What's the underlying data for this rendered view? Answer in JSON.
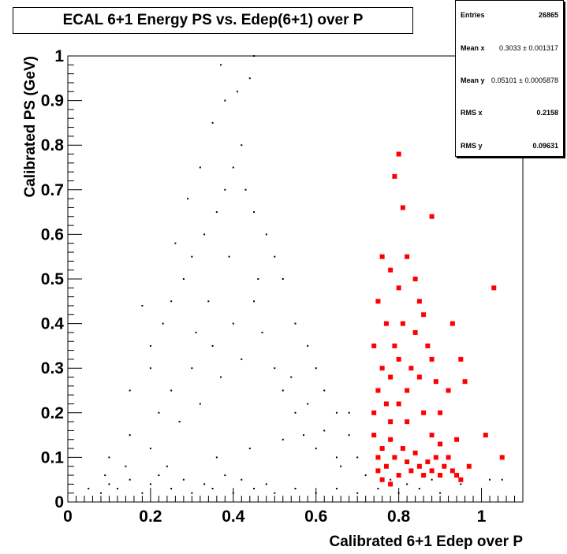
{
  "title": "ECAL 6+1 Energy PS vs. Edep(6+1) over P",
  "stats": [
    {
      "name": "Entries",
      "value": "26865"
    },
    {
      "name": "Mean x",
      "value": "0.3033 ± 0.001317"
    },
    {
      "name": "Mean y",
      "value": "0.05101 ± 0.0005878"
    },
    {
      "name": "RMS x",
      "value": "0.2158"
    },
    {
      "name": "RMS y",
      "value": "0.09631"
    }
  ],
  "chart_data": {
    "type": "scatter",
    "title": "ECAL 6+1 Energy PS vs. Edep(6+1) over P",
    "xlabel": "Calibrated 6+1 Edep over P",
    "ylabel": "Calibrated PS (GeV)",
    "xlim": [
      0,
      1.1
    ],
    "ylim": [
      0,
      1.0
    ],
    "x_ticks": [
      "0",
      "0.2",
      "0.4",
      "0.6",
      "0.8",
      "1"
    ],
    "y_ticks": [
      "0",
      "0.1",
      "0.2",
      "0.3",
      "0.4",
      "0.5",
      "0.6",
      "0.7",
      "0.8",
      "0.9",
      "1"
    ],
    "grid": false,
    "colors": {
      "all": "#000000",
      "selected": "#ff0000"
    },
    "series": [
      {
        "style": "small black dots",
        "points": [
          [
            0.05,
            0.03
          ],
          [
            0.08,
            0.02
          ],
          [
            0.1,
            0.04
          ],
          [
            0.12,
            0.03
          ],
          [
            0.15,
            0.05
          ],
          [
            0.18,
            0.02
          ],
          [
            0.2,
            0.04
          ],
          [
            0.22,
            0.06
          ],
          [
            0.25,
            0.03
          ],
          [
            0.28,
            0.05
          ],
          [
            0.3,
            0.02
          ],
          [
            0.33,
            0.04
          ],
          [
            0.35,
            0.03
          ],
          [
            0.38,
            0.06
          ],
          [
            0.4,
            0.02
          ],
          [
            0.42,
            0.05
          ],
          [
            0.45,
            0.03
          ],
          [
            0.48,
            0.04
          ],
          [
            0.5,
            0.02
          ],
          [
            0.55,
            0.03
          ],
          [
            0.6,
            0.02
          ],
          [
            0.65,
            0.03
          ],
          [
            0.7,
            0.02
          ],
          [
            0.75,
            0.03
          ],
          [
            0.8,
            0.02
          ],
          [
            0.85,
            0.03
          ],
          [
            0.9,
            0.02
          ],
          [
            0.1,
            0.1
          ],
          [
            0.15,
            0.15
          ],
          [
            0.2,
            0.12
          ],
          [
            0.22,
            0.2
          ],
          [
            0.25,
            0.25
          ],
          [
            0.27,
            0.18
          ],
          [
            0.3,
            0.3
          ],
          [
            0.32,
            0.22
          ],
          [
            0.35,
            0.35
          ],
          [
            0.37,
            0.28
          ],
          [
            0.4,
            0.4
          ],
          [
            0.42,
            0.32
          ],
          [
            0.45,
            0.45
          ],
          [
            0.47,
            0.38
          ],
          [
            0.5,
            0.3
          ],
          [
            0.52,
            0.25
          ],
          [
            0.55,
            0.2
          ],
          [
            0.57,
            0.15
          ],
          [
            0.6,
            0.12
          ],
          [
            0.65,
            0.1
          ],
          [
            0.28,
            0.5
          ],
          [
            0.3,
            0.55
          ],
          [
            0.33,
            0.6
          ],
          [
            0.36,
            0.65
          ],
          [
            0.38,
            0.7
          ],
          [
            0.4,
            0.75
          ],
          [
            0.42,
            0.8
          ],
          [
            0.35,
            0.85
          ],
          [
            0.38,
            0.9
          ],
          [
            0.41,
            0.92
          ],
          [
            0.44,
            0.95
          ],
          [
            0.37,
            0.98
          ],
          [
            0.45,
            1.0
          ],
          [
            0.25,
            0.45
          ],
          [
            0.2,
            0.35
          ],
          [
            0.18,
            0.44
          ],
          [
            0.15,
            0.25
          ],
          [
            0.5,
            0.55
          ],
          [
            0.48,
            0.6
          ],
          [
            0.52,
            0.5
          ],
          [
            0.55,
            0.4
          ],
          [
            0.58,
            0.35
          ],
          [
            0.6,
            0.3
          ],
          [
            0.62,
            0.25
          ],
          [
            0.65,
            0.2
          ],
          [
            0.68,
            0.15
          ],
          [
            0.7,
            0.1
          ],
          [
            0.45,
            0.65
          ],
          [
            0.43,
            0.7
          ],
          [
            0.32,
            0.75
          ],
          [
            0.29,
            0.68
          ],
          [
            0.26,
            0.58
          ],
          [
            0.23,
            0.4
          ],
          [
            0.2,
            0.3
          ],
          [
            0.46,
            0.5
          ],
          [
            0.34,
            0.45
          ],
          [
            0.31,
            0.38
          ],
          [
            0.39,
            0.55
          ],
          [
            0.54,
            0.28
          ],
          [
            0.58,
            0.22
          ],
          [
            0.66,
            0.08
          ],
          [
            0.72,
            0.06
          ],
          [
            0.78,
            0.05
          ],
          [
            0.82,
            0.04
          ],
          [
            0.88,
            0.05
          ],
          [
            0.95,
            0.04
          ],
          [
            1.02,
            0.05
          ],
          [
            1.05,
            0.05
          ],
          [
            0.24,
            0.08
          ],
          [
            0.36,
            0.1
          ],
          [
            0.44,
            0.12
          ],
          [
            0.52,
            0.14
          ],
          [
            0.62,
            0.16
          ],
          [
            0.68,
            0.2
          ],
          [
            0.14,
            0.08
          ],
          [
            0.09,
            0.06
          ]
        ]
      },
      {
        "style": "red squares",
        "points": [
          [
            0.74,
            0.15
          ],
          [
            0.75,
            0.1
          ],
          [
            0.76,
            0.12
          ],
          [
            0.77,
            0.08
          ],
          [
            0.78,
            0.14
          ],
          [
            0.79,
            0.1
          ],
          [
            0.8,
            0.06
          ],
          [
            0.81,
            0.12
          ],
          [
            0.82,
            0.09
          ],
          [
            0.83,
            0.07
          ],
          [
            0.84,
            0.11
          ],
          [
            0.85,
            0.08
          ],
          [
            0.86,
            0.06
          ],
          [
            0.87,
            0.09
          ],
          [
            0.88,
            0.07
          ],
          [
            0.89,
            0.1
          ],
          [
            0.9,
            0.06
          ],
          [
            0.91,
            0.08
          ],
          [
            0.93,
            0.07
          ],
          [
            0.95,
            0.05
          ],
          [
            0.74,
            0.2
          ],
          [
            0.75,
            0.25
          ],
          [
            0.76,
            0.3
          ],
          [
            0.77,
            0.22
          ],
          [
            0.78,
            0.28
          ],
          [
            0.79,
            0.35
          ],
          [
            0.8,
            0.32
          ],
          [
            0.81,
            0.4
          ],
          [
            0.82,
            0.25
          ],
          [
            0.83,
            0.3
          ],
          [
            0.84,
            0.38
          ],
          [
            0.85,
            0.28
          ],
          [
            0.86,
            0.42
          ],
          [
            0.87,
            0.35
          ],
          [
            0.88,
            0.32
          ],
          [
            0.89,
            0.27
          ],
          [
            0.9,
            0.2
          ],
          [
            0.92,
            0.25
          ],
          [
            0.93,
            0.4
          ],
          [
            0.95,
            0.32
          ],
          [
            0.76,
            0.55
          ],
          [
            0.78,
            0.52
          ],
          [
            0.8,
            0.48
          ],
          [
            0.82,
            0.55
          ],
          [
            0.84,
            0.5
          ],
          [
            0.79,
            0.73
          ],
          [
            0.8,
            0.78
          ],
          [
            0.81,
            0.66
          ],
          [
            0.88,
            0.64
          ],
          [
            0.85,
            0.45
          ],
          [
            0.74,
            0.35
          ],
          [
            0.75,
            0.45
          ],
          [
            0.77,
            0.4
          ],
          [
            0.78,
            0.18
          ],
          [
            0.8,
            0.22
          ],
          [
            0.82,
            0.18
          ],
          [
            0.86,
            0.2
          ],
          [
            0.88,
            0.15
          ],
          [
            0.9,
            0.13
          ],
          [
            0.94,
            0.14
          ],
          [
            1.03,
            0.48
          ],
          [
            1.01,
            0.15
          ],
          [
            1.05,
            0.1
          ],
          [
            0.92,
            0.1
          ],
          [
            0.94,
            0.06
          ],
          [
            0.96,
            0.27
          ],
          [
            0.97,
            0.08
          ],
          [
            0.76,
            0.05
          ],
          [
            0.78,
            0.04
          ],
          [
            0.75,
            0.07
          ]
        ]
      }
    ]
  }
}
